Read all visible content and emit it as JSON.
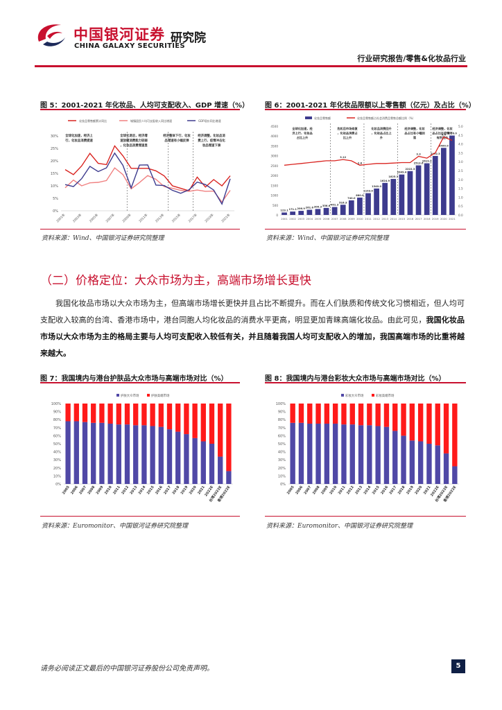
{
  "header": {
    "logo_cn": "中国银河证券",
    "logo_en": "CHINA GALAXY SECURITIES",
    "logo_suffix": "研究院",
    "report_type": "行业研究报告/零售&化妆品行业"
  },
  "colors": {
    "brand_red": "#c8102e",
    "navy": "#3d3b8e",
    "line_red": "#d9231f"
  },
  "figures": {
    "fig5": {
      "title": "图 5：2001-2021 年化妆品、人均可支配收入、GDP 增速（%）",
      "source": "资料来源：Wind、中国银河证券研究院整理",
      "legend": [
        "化妆品零售额累计同比",
        "城镇居民人均可支配收入同比增速",
        "GDP现价同比增速"
      ],
      "annotations": [
        "全球化加速，经济上行，化妆品消费提速",
        "全球化退后，经济增速放缓消费能力较弱，化妆品消费增速显著下降",
        "经济整体下行，化妆品增速有小幅反弹",
        "经济调整，化妆品消费上行，疫情冲击化妆品增速下滑"
      ]
    },
    "fig6": {
      "title": "图 6：2001-2021 年化妆品限额以上零售额（亿元）及占比（%）",
      "source": "资料来源：Wind、中国银河证券研究院整理",
      "legend": [
        "化妆品零售额",
        "化妆品零售额占社会消费品零售总额比例（%）"
      ],
      "annotations": [
        "全球化加速，经济上行，化妆品占比上升",
        "危机后市场修复，化妆品消费占比上升",
        "化妆品消费回升，化妆品占比上升",
        "经济调整，化妆品占比有小幅回落",
        "经济调整，化妆品占比在疫情下有所回升"
      ]
    },
    "fig7": {
      "title": "图 7：我国境内与港台护肤品大众市场与高端市场对比（%）",
      "source": "资料来源：Euromonitor、中国银河证券研究院整理",
      "legend": [
        "护肤大众市场",
        "护肤高端市场"
      ]
    },
    "fig8": {
      "title": "图 8：我国境内与港台彩妆大众市场与高端市场对比（%）",
      "source": "资料来源：Euromonitor、中国银河证券研究院整理",
      "legend": [
        "彩妆大众市场",
        "彩妆高端市场"
      ]
    }
  },
  "section": {
    "title": "（二）价格定位：大众市场为主，高端市场增长更快",
    "para_part1": "我国化妆品市场以大众市场为主，但高端市场增长更快并且占比不断提升。而在人们肤质和传统文化习惯相近，但人均可支配收入较高的台湾、香港市场中，港台同胞人均化妆品的消费水平更高，明显更加青睐高端化妆品。由此可见，",
    "para_bold": "我国化妆品市场以大众市场为主的格局主要与人均可支配收入较低有关，并且随着我国人均可支配收入的增加，我国高端市场的比重将越来越大。"
  },
  "footer": {
    "disclaimer": "请务必阅读正文最后的中国银河证券股份公司免责声明。",
    "page": "5"
  },
  "chart_data": [
    {
      "id": "fig5",
      "type": "line",
      "x": [
        "2001年",
        "2002年",
        "2003年",
        "2004年",
        "2005年",
        "2006年",
        "2007年",
        "2008年",
        "2009年",
        "2010年",
        "2011年",
        "2012年",
        "2013年",
        "2014年",
        "2015年",
        "2016年",
        "2017年",
        "2018年",
        "2019年",
        "2020年",
        "2021年"
      ],
      "x_tick_labels": [
        "2001年",
        "2003年",
        "2005年",
        "2007年",
        "2009年",
        "2011年",
        "2013年",
        "2015年",
        "2017年",
        "2019年",
        "2021年"
      ],
      "ylim": [
        0,
        30
      ],
      "y_ticks": [
        "0%",
        "5%",
        "10%",
        "15%",
        "20%",
        "25%",
        "30%"
      ],
      "series": [
        {
          "name": "化妆品零售额累计同比",
          "color": "#d9231f",
          "values": [
            16.5,
            14.5,
            18,
            23,
            19,
            18.5,
            26,
            22,
            17,
            17,
            17,
            16,
            14,
            10,
            9,
            8,
            13.5,
            9.5,
            12.5,
            10,
            14
          ]
        },
        {
          "name": "城镇居民人均可支配收入同比增速",
          "color": "#f08080",
          "values": [
            9.2,
            12.3,
            10,
            11.2,
            11.4,
            12.1,
            17.2,
            14.5,
            8.8,
            11.3,
            14.1,
            12.6,
            9.7,
            9,
            8.2,
            7.8,
            8.3,
            7.8,
            7.9,
            3.5,
            8.2
          ]
        },
        {
          "name": "GDP现价同比增速",
          "color": "#3d3b8e",
          "values": [
            10.5,
            9.7,
            12.9,
            17.8,
            15.7,
            17.2,
            23.1,
            18.2,
            9.2,
            18.3,
            18.4,
            10.3,
            10.1,
            8.2,
            7,
            8.4,
            11.5,
            10.5,
            8.3,
            2.7,
            12.8
          ]
        }
      ]
    },
    {
      "id": "fig6",
      "type": "bar",
      "categories": [
        "2001",
        "2002",
        "2003",
        "2004",
        "2005",
        "2006",
        "2007",
        "2008",
        "2009",
        "2010",
        "2011",
        "2012",
        "2013",
        "2014",
        "2015",
        "2016",
        "2017",
        "2018",
        "2019",
        "2020",
        "2021"
      ],
      "x_tick_labels": [
        "2001",
        "2002",
        "2003",
        "2004",
        "2005",
        "2006",
        "2007",
        "2008",
        "2009",
        "2010",
        "2011",
        "2012",
        "2013",
        "2014",
        "2015",
        "2016",
        "2017",
        "2018",
        "2019",
        "2020",
        "2021"
      ],
      "ylim": [
        0,
        4500
      ],
      "y_ticks": [
        "0",
        "500",
        "1000",
        "1500",
        "2000",
        "2500",
        "3000",
        "3500",
        "4000",
        "4500"
      ],
      "y2lim": [
        0,
        5
      ],
      "y2_ticks": [
        "0.0",
        "0.5",
        "1.0",
        "1.5",
        "2.0",
        "2.5",
        "3.0",
        "3.5",
        "4.0",
        "4.5",
        "5.0"
      ],
      "series": [
        {
          "name": "化妆品零售额",
          "color": "#3d3b8e",
          "values": [
            123.1,
            171.1,
            206.9,
            261.6,
            300.3,
            356.6,
            401.3,
            516.3,
            740.0,
            880.0,
            1103.0,
            1340.0,
            1624.9,
            1825.3,
            2049.4,
            2222.3,
            2513.6,
            2619.2,
            2992.3,
            3400.0,
            4026.0
          ],
          "labels": [
            "123.1",
            "171.1",
            "206.9",
            "261.6",
            "300.3",
            "356.6",
            "401.3",
            "516.3",
            "740.0",
            "880.0",
            "1103.0",
            "1340.0",
            "1624.9",
            "1825.3",
            "2049.4",
            "2222.3",
            "2513.6",
            "2619.2",
            "2992.3",
            "3400.0",
            "4026.0"
          ]
        },
        {
          "name": "化妆品零售额占社会消费品零售总额比例（%）",
          "color": "#d9231f",
          "values": [
            2.8,
            2.85,
            2.9,
            2.95,
            3.0,
            3.05,
            3.05,
            3.12,
            3.05,
            2.8,
            2.85,
            2.9,
            2.9,
            2.92,
            2.95,
            2.95,
            3.3,
            3.2,
            3.5,
            4.4,
            4.2
          ],
          "labels": [
            "",
            "",
            "",
            "",
            "",
            "",
            "",
            "3.12",
            "",
            "2.8",
            "",
            "",
            "",
            "",
            "",
            "",
            "3.3",
            "",
            "",
            "4.4",
            ""
          ]
        }
      ]
    },
    {
      "id": "fig7",
      "type": "bar",
      "stacked": true,
      "categories": [
        "2005",
        "2006",
        "2007",
        "2008",
        "2009",
        "2010",
        "2011",
        "2012",
        "2013",
        "2014",
        "2015",
        "2016",
        "2017",
        "2018",
        "2019",
        "2020",
        "2021",
        "2022E",
        "台湾2022E",
        "香港2022E"
      ],
      "ylim": [
        0,
        100
      ],
      "y_ticks": [
        "0%",
        "10%",
        "20%",
        "30%",
        "40%",
        "50%",
        "60%",
        "70%",
        "80%",
        "90%",
        "100%"
      ],
      "series": [
        {
          "name": "护肤大众市场",
          "color": "#5048a6",
          "values": [
            78,
            78,
            77,
            76,
            76,
            75,
            74,
            74,
            73,
            73,
            72,
            71,
            68,
            65,
            62,
            57,
            53,
            50,
            34,
            16
          ]
        },
        {
          "name": "护肤高端市场",
          "color": "#ff1a1a",
          "values": [
            22,
            22,
            23,
            24,
            24,
            25,
            26,
            26,
            27,
            27,
            28,
            29,
            32,
            35,
            38,
            43,
            47,
            50,
            66,
            84
          ]
        }
      ]
    },
    {
      "id": "fig8",
      "type": "bar",
      "stacked": true,
      "categories": [
        "2005",
        "2006",
        "2007",
        "2008",
        "2009",
        "2010",
        "2011",
        "2012",
        "2013",
        "2014",
        "2015",
        "2016",
        "2017",
        "2018",
        "2019",
        "2020",
        "2021",
        "2022E",
        "台湾2022E",
        "香港2022E"
      ],
      "ylim": [
        0,
        100
      ],
      "y_ticks": [
        "0%",
        "10%",
        "20%",
        "30%",
        "40%",
        "50%",
        "60%",
        "70%",
        "80%",
        "90%",
        "100%"
      ],
      "series": [
        {
          "name": "彩妆大众市场",
          "color": "#5048a6",
          "values": [
            76,
            76,
            75,
            75,
            75,
            75,
            74,
            74,
            73,
            73,
            72,
            71,
            66,
            60,
            54,
            53,
            50,
            48,
            38,
            22
          ]
        },
        {
          "name": "彩妆高端市场",
          "color": "#ff1a1a",
          "values": [
            24,
            24,
            25,
            25,
            25,
            25,
            26,
            26,
            27,
            27,
            28,
            29,
            34,
            40,
            46,
            47,
            50,
            52,
            62,
            78
          ]
        }
      ]
    }
  ]
}
